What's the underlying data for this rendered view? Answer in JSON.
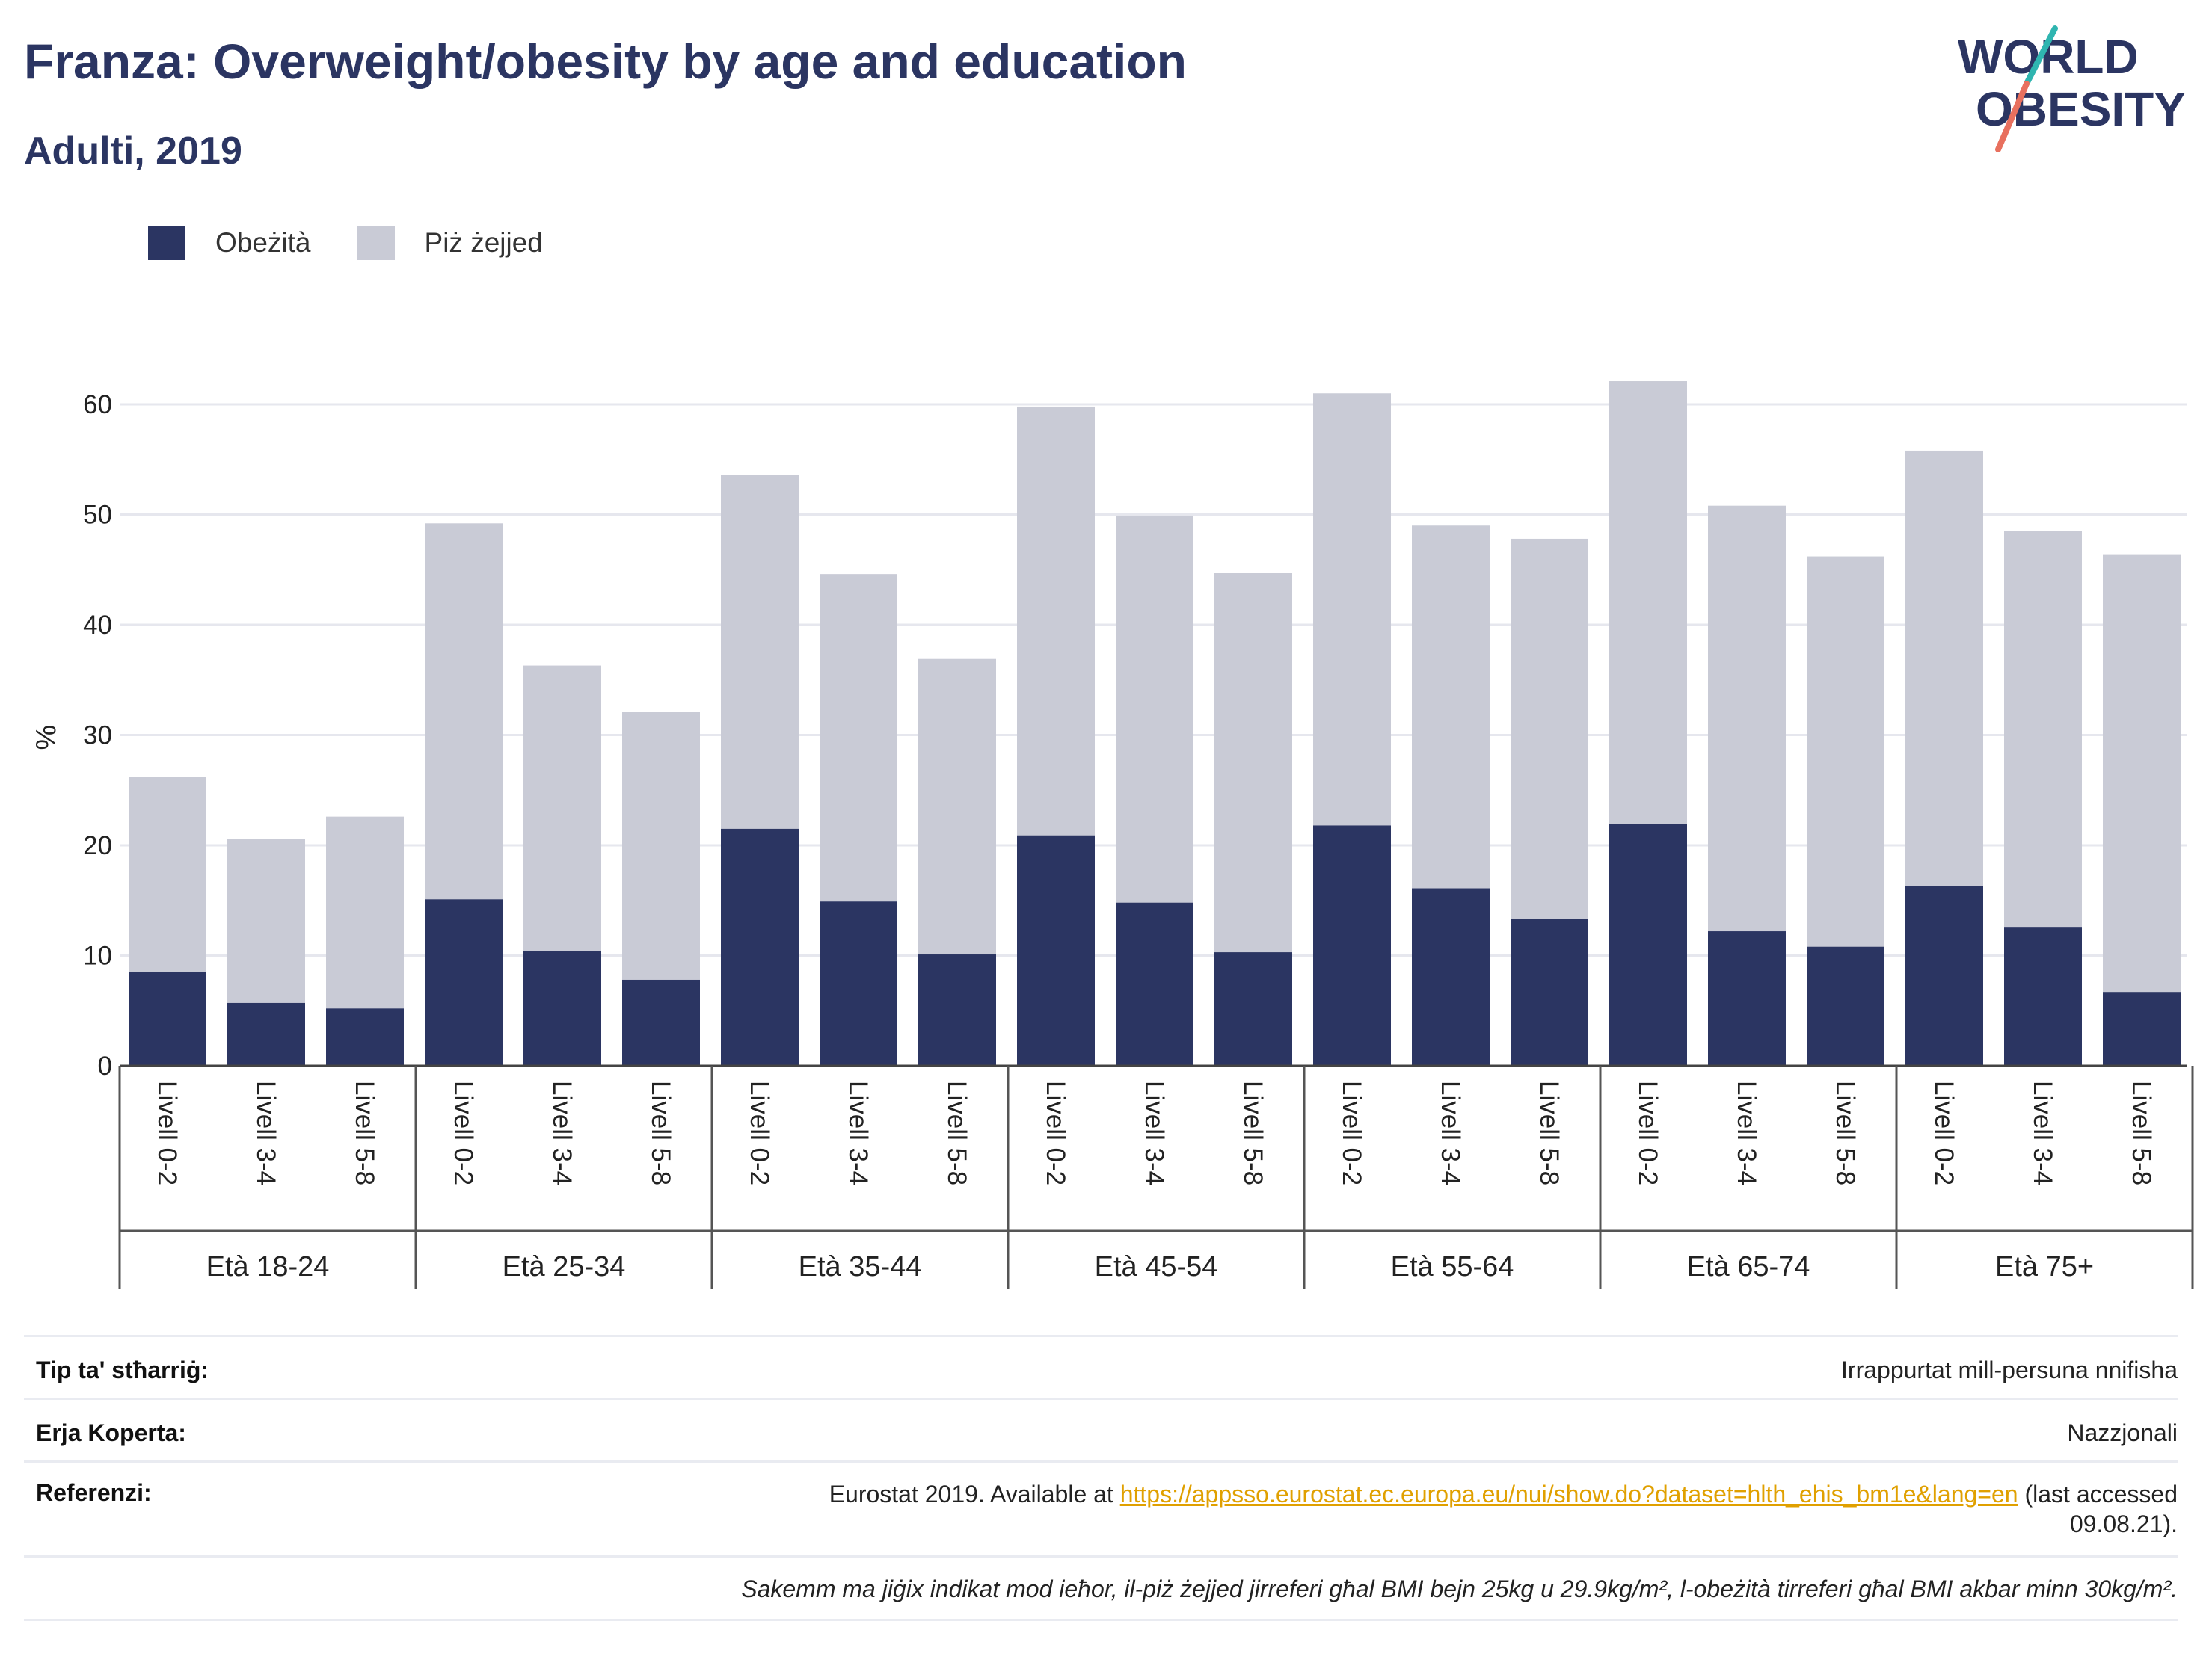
{
  "header": {
    "title": "Franza: Overweight/obesity by age and education",
    "subtitle": "Adulti, 2019"
  },
  "logo": {
    "line1": "WORLD",
    "line2": "OBESITY"
  },
  "legend": [
    {
      "label": "Obeżità",
      "color": "#2b3562"
    },
    {
      "label": "Piż żejjed",
      "color": "#c9cbd6"
    }
  ],
  "chart_data": {
    "type": "bar",
    "stacked": true,
    "ylabel": "%",
    "ylim": [
      0,
      65
    ],
    "yticks": [
      0,
      10,
      20,
      30,
      40,
      50,
      60
    ],
    "grid": true,
    "legend_position": "top-left",
    "groups": [
      {
        "label": "Età 18-24",
        "categories": [
          "Livell 0-2",
          "Livell 3-4",
          "Livell 5-8"
        ],
        "obesity": [
          8.5,
          5.7,
          5.2
        ],
        "total": [
          26.2,
          20.6,
          22.6
        ]
      },
      {
        "label": "Età 25-34",
        "categories": [
          "Livell 0-2",
          "Livell 3-4",
          "Livell 5-8"
        ],
        "obesity": [
          15.1,
          10.4,
          7.8
        ],
        "total": [
          49.2,
          36.3,
          32.1
        ]
      },
      {
        "label": "Età 35-44",
        "categories": [
          "Livell 0-2",
          "Livell 3-4",
          "Livell 5-8"
        ],
        "obesity": [
          21.5,
          14.9,
          10.1
        ],
        "total": [
          53.6,
          44.6,
          36.9
        ]
      },
      {
        "label": "Età 45-54",
        "categories": [
          "Livell 0-2",
          "Livell 3-4",
          "Livell 5-8"
        ],
        "obesity": [
          20.9,
          14.8,
          10.3
        ],
        "total": [
          59.8,
          49.9,
          44.7
        ]
      },
      {
        "label": "Età 55-64",
        "categories": [
          "Livell 0-2",
          "Livell 3-4",
          "Livell 5-8"
        ],
        "obesity": [
          21.8,
          16.1,
          13.3
        ],
        "total": [
          61.0,
          49.0,
          47.8
        ]
      },
      {
        "label": "Età 65-74",
        "categories": [
          "Livell 0-2",
          "Livell 3-4",
          "Livell 5-8"
        ],
        "obesity": [
          21.9,
          12.2,
          10.8
        ],
        "total": [
          62.1,
          50.8,
          46.2
        ]
      },
      {
        "label": "Età 75+",
        "categories": [
          "Livell 0-2",
          "Livell 3-4",
          "Livell 5-8"
        ],
        "obesity": [
          16.3,
          12.6,
          6.7
        ],
        "total": [
          55.8,
          48.5,
          46.4
        ]
      }
    ],
    "colors": {
      "obesity": "#2b3562",
      "overweight": "#c9cbd6"
    }
  },
  "meta": {
    "survey_key": "Tip ta' stħarriġ:",
    "survey_val": "Irrappurtat mill-persuna nnifisha",
    "area_key": "Erja Koperta:",
    "area_val": "Nazzjonali",
    "ref_key": "Referenzi:",
    "ref_prefix": "Eurostat 2019. Available at ",
    "ref_link": "https://appsso.eurostat.ec.europa.eu/nui/show.do?dataset=hlth_ehis_bm1e&lang=en",
    "ref_suffix": " (last accessed",
    "ref_date": "09.08.21).",
    "note": "Sakemm ma jiġix indikat mod ieħor, il-piż żejjed jirreferi għal BMI bejn 25kg u 29.9kg/m², l-obeżità tirreferi għal BMI akbar minn 30kg/m²."
  }
}
